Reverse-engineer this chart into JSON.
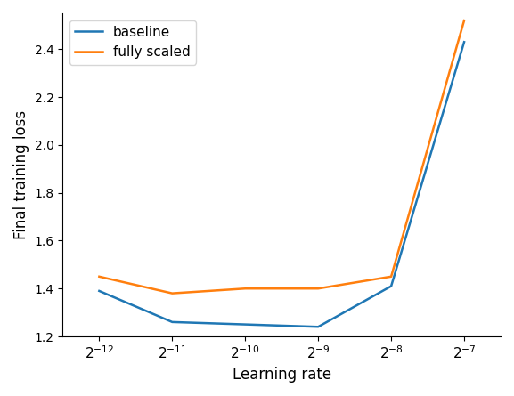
{
  "x_exponents": [
    -12,
    -11,
    -10,
    -9,
    -8,
    -7
  ],
  "baseline": [
    1.39,
    1.26,
    1.25,
    1.24,
    1.41,
    2.43
  ],
  "fully_scaled": [
    1.45,
    1.38,
    1.4,
    1.4,
    1.45,
    2.52
  ],
  "baseline_color": "#1f77b4",
  "fully_scaled_color": "#ff7f0e",
  "xlabel": "Learning rate",
  "ylabel": "Final training loss",
  "legend_labels": [
    "baseline",
    "fully scaled"
  ],
  "ylim": [
    1.2,
    2.55
  ],
  "linewidth": 1.8
}
